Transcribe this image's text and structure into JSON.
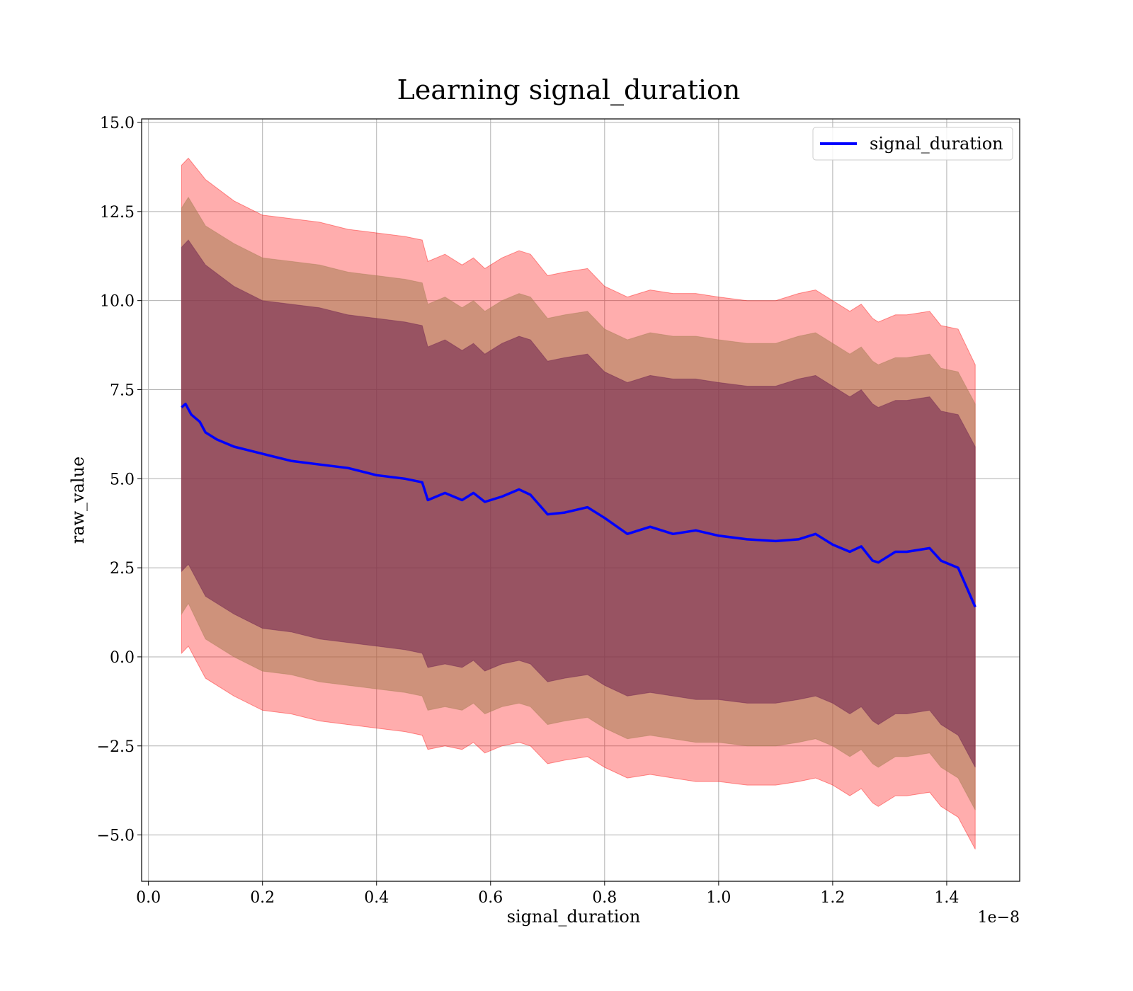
{
  "chart_data": {
    "type": "line",
    "title": "Learning signal_duration",
    "xlabel": "signal_duration",
    "ylabel": "raw_value",
    "x_offset_text": "1e−8",
    "xlim": [
      -0.012,
      1.528
    ],
    "ylim": [
      -6.3,
      15.1
    ],
    "x_ticks": [
      0.0,
      0.2,
      0.4,
      0.6,
      0.8,
      1.0,
      1.2,
      1.4
    ],
    "x_tick_labels": [
      "0.0",
      "0.2",
      "0.4",
      "0.6",
      "0.8",
      "1.0",
      "1.2",
      "1.4"
    ],
    "y_ticks": [
      -5.0,
      -2.5,
      0.0,
      2.5,
      5.0,
      7.5,
      10.0,
      12.5,
      15.0
    ],
    "y_tick_labels": [
      "−5.0",
      "−2.5",
      "0.0",
      "2.5",
      "5.0",
      "7.5",
      "10.0",
      "12.5",
      "15.0"
    ],
    "grid": true,
    "legend": {
      "position": "upper right",
      "entries": [
        "signal_duration"
      ]
    },
    "colors": {
      "line": "#0000ff",
      "band_outer": "#ff0000",
      "band_middle": "#a67c52",
      "band_inner": "#6b1f4f"
    },
    "series": [
      {
        "name": "signal_duration",
        "x": [
          0.058,
          0.065,
          0.075,
          0.09,
          0.1,
          0.12,
          0.15,
          0.2,
          0.25,
          0.3,
          0.35,
          0.4,
          0.45,
          0.48,
          0.49,
          0.52,
          0.55,
          0.57,
          0.59,
          0.62,
          0.65,
          0.67,
          0.7,
          0.73,
          0.77,
          0.8,
          0.84,
          0.88,
          0.92,
          0.96,
          1.0,
          1.05,
          1.1,
          1.14,
          1.17,
          1.2,
          1.23,
          1.25,
          1.27,
          1.28,
          1.31,
          1.33,
          1.37,
          1.39,
          1.42,
          1.45
        ],
        "y": [
          7.0,
          7.1,
          6.8,
          6.6,
          6.3,
          6.1,
          5.9,
          5.7,
          5.5,
          5.4,
          5.3,
          5.1,
          5.0,
          4.9,
          4.4,
          4.6,
          4.4,
          4.6,
          4.35,
          4.5,
          4.7,
          4.55,
          4.0,
          4.05,
          4.2,
          3.9,
          3.45,
          3.65,
          3.45,
          3.55,
          3.4,
          3.3,
          3.25,
          3.3,
          3.45,
          3.15,
          2.95,
          3.1,
          2.7,
          2.65,
          2.95,
          2.95,
          3.05,
          2.7,
          2.5,
          1.4
        ]
      }
    ],
    "bands": [
      {
        "level": "outer",
        "x": [
          0.058,
          0.07,
          0.1,
          0.15,
          0.2,
          0.25,
          0.3,
          0.35,
          0.4,
          0.45,
          0.48,
          0.49,
          0.52,
          0.55,
          0.57,
          0.59,
          0.62,
          0.65,
          0.67,
          0.7,
          0.73,
          0.77,
          0.8,
          0.84,
          0.88,
          0.92,
          0.96,
          1.0,
          1.05,
          1.1,
          1.14,
          1.17,
          1.2,
          1.23,
          1.25,
          1.27,
          1.28,
          1.31,
          1.33,
          1.37,
          1.39,
          1.42,
          1.45
        ],
        "upper": [
          13.8,
          14.0,
          13.4,
          12.8,
          12.4,
          12.3,
          12.2,
          12.0,
          11.9,
          11.8,
          11.7,
          11.1,
          11.3,
          11.0,
          11.2,
          10.9,
          11.2,
          11.4,
          11.3,
          10.7,
          10.8,
          10.9,
          10.4,
          10.1,
          10.3,
          10.2,
          10.2,
          10.1,
          10.0,
          10.0,
          10.2,
          10.3,
          10.0,
          9.7,
          9.9,
          9.5,
          9.4,
          9.6,
          9.6,
          9.7,
          9.3,
          9.2,
          8.2
        ],
        "lower": [
          0.1,
          0.3,
          -0.6,
          -1.1,
          -1.5,
          -1.6,
          -1.8,
          -1.9,
          -2.0,
          -2.1,
          -2.2,
          -2.6,
          -2.5,
          -2.6,
          -2.4,
          -2.7,
          -2.5,
          -2.4,
          -2.5,
          -3.0,
          -2.9,
          -2.8,
          -3.1,
          -3.4,
          -3.3,
          -3.4,
          -3.5,
          -3.5,
          -3.6,
          -3.6,
          -3.5,
          -3.4,
          -3.6,
          -3.9,
          -3.7,
          -4.1,
          -4.2,
          -3.9,
          -3.9,
          -3.8,
          -4.2,
          -4.5,
          -5.4
        ]
      },
      {
        "level": "middle",
        "x": [
          0.058,
          0.07,
          0.1,
          0.15,
          0.2,
          0.25,
          0.3,
          0.35,
          0.4,
          0.45,
          0.48,
          0.49,
          0.52,
          0.55,
          0.57,
          0.59,
          0.62,
          0.65,
          0.67,
          0.7,
          0.73,
          0.77,
          0.8,
          0.84,
          0.88,
          0.92,
          0.96,
          1.0,
          1.05,
          1.1,
          1.14,
          1.17,
          1.2,
          1.23,
          1.25,
          1.27,
          1.28,
          1.31,
          1.33,
          1.37,
          1.39,
          1.42,
          1.45
        ],
        "upper": [
          12.6,
          12.9,
          12.1,
          11.6,
          11.2,
          11.1,
          11.0,
          10.8,
          10.7,
          10.6,
          10.5,
          9.9,
          10.1,
          9.8,
          10.0,
          9.7,
          10.0,
          10.2,
          10.1,
          9.5,
          9.6,
          9.7,
          9.2,
          8.9,
          9.1,
          9.0,
          9.0,
          8.9,
          8.8,
          8.8,
          9.0,
          9.1,
          8.8,
          8.5,
          8.7,
          8.3,
          8.2,
          8.4,
          8.4,
          8.5,
          8.1,
          8.0,
          7.1
        ],
        "lower": [
          1.2,
          1.5,
          0.5,
          0.0,
          -0.4,
          -0.5,
          -0.7,
          -0.8,
          -0.9,
          -1.0,
          -1.1,
          -1.5,
          -1.4,
          -1.5,
          -1.3,
          -1.6,
          -1.4,
          -1.3,
          -1.4,
          -1.9,
          -1.8,
          -1.7,
          -2.0,
          -2.3,
          -2.2,
          -2.3,
          -2.4,
          -2.4,
          -2.5,
          -2.5,
          -2.4,
          -2.3,
          -2.5,
          -2.8,
          -2.6,
          -3.0,
          -3.1,
          -2.8,
          -2.8,
          -2.7,
          -3.1,
          -3.4,
          -4.3
        ]
      },
      {
        "level": "inner",
        "x": [
          0.058,
          0.07,
          0.1,
          0.15,
          0.2,
          0.25,
          0.3,
          0.35,
          0.4,
          0.45,
          0.48,
          0.49,
          0.52,
          0.55,
          0.57,
          0.59,
          0.62,
          0.65,
          0.67,
          0.7,
          0.73,
          0.77,
          0.8,
          0.84,
          0.88,
          0.92,
          0.96,
          1.0,
          1.05,
          1.1,
          1.14,
          1.17,
          1.2,
          1.23,
          1.25,
          1.27,
          1.28,
          1.31,
          1.33,
          1.37,
          1.39,
          1.42,
          1.45
        ],
        "upper": [
          11.5,
          11.7,
          11.0,
          10.4,
          10.0,
          9.9,
          9.8,
          9.6,
          9.5,
          9.4,
          9.3,
          8.7,
          8.9,
          8.6,
          8.8,
          8.5,
          8.8,
          9.0,
          8.9,
          8.3,
          8.4,
          8.5,
          8.0,
          7.7,
          7.9,
          7.8,
          7.8,
          7.7,
          7.6,
          7.6,
          7.8,
          7.9,
          7.6,
          7.3,
          7.5,
          7.1,
          7.0,
          7.2,
          7.2,
          7.3,
          6.9,
          6.8,
          5.9
        ],
        "lower": [
          2.4,
          2.6,
          1.7,
          1.2,
          0.8,
          0.7,
          0.5,
          0.4,
          0.3,
          0.2,
          0.1,
          -0.3,
          -0.2,
          -0.3,
          -0.1,
          -0.4,
          -0.2,
          -0.1,
          -0.2,
          -0.7,
          -0.6,
          -0.5,
          -0.8,
          -1.1,
          -1.0,
          -1.1,
          -1.2,
          -1.2,
          -1.3,
          -1.3,
          -1.2,
          -1.1,
          -1.3,
          -1.6,
          -1.4,
          -1.8,
          -1.9,
          -1.6,
          -1.6,
          -1.5,
          -1.9,
          -2.2,
          -3.1
        ]
      }
    ]
  }
}
